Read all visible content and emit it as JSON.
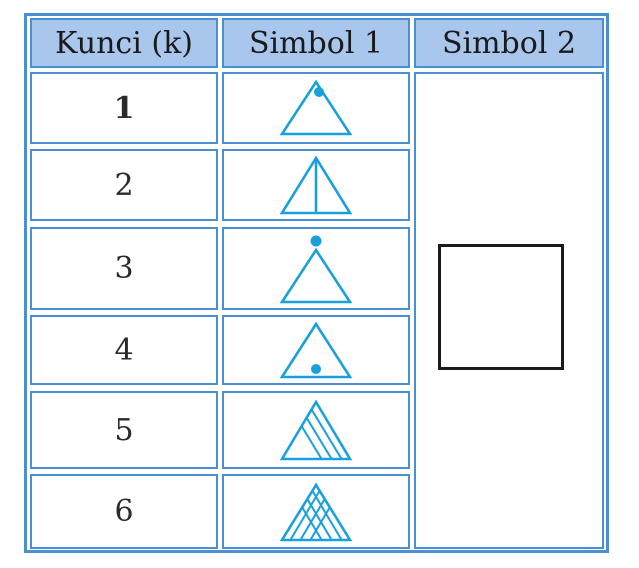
{
  "table": {
    "headers": [
      "Kunci (k)",
      "Simbol 1",
      "Simbol 2"
    ],
    "rows": [
      {
        "key": "1",
        "symbol": "triangle-dot-top-icon"
      },
      {
        "key": "2",
        "symbol": "triangle-center-line-icon"
      },
      {
        "key": "3",
        "symbol": "triangle-dot-above-icon"
      },
      {
        "key": "4",
        "symbol": "triangle-dot-bottom-icon"
      },
      {
        "key": "5",
        "symbol": "triangle-diagonal-hatch-icon"
      },
      {
        "key": "6",
        "symbol": "triangle-cross-hatch-icon"
      }
    ],
    "colors": {
      "border": "#4a8fd4",
      "header_bg": "#a9c6ec",
      "symbol": "#1aa0dc",
      "box": "#1a1a1a"
    }
  }
}
